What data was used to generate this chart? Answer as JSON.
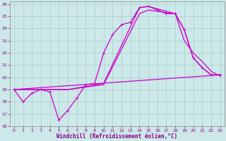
{
  "xlabel": "Windchill (Refroidissement éolien,°C)",
  "background_color": "#cce8e8",
  "grid_color": "#aacccc",
  "line_color": "#cc00cc",
  "xlim": [
    -0.5,
    23.5
  ],
  "ylim": [
    16,
    26.2
  ],
  "yticks": [
    16,
    17,
    18,
    19,
    20,
    21,
    22,
    23,
    24,
    25,
    26
  ],
  "xticks": [
    0,
    1,
    2,
    3,
    4,
    5,
    6,
    7,
    8,
    9,
    10,
    11,
    12,
    13,
    14,
    15,
    16,
    17,
    18,
    19,
    20,
    21,
    22,
    23
  ],
  "lines": [
    {
      "x": [
        0,
        1,
        2,
        3,
        4,
        5,
        6,
        7,
        8,
        9,
        10,
        11,
        12,
        13,
        14,
        15,
        16,
        17,
        18,
        19,
        20,
        21,
        22,
        23
      ],
      "y": [
        19.0,
        18.0,
        18.7,
        19.0,
        18.8,
        16.5,
        17.3,
        18.3,
        19.4,
        19.5,
        22.0,
        23.5,
        24.3,
        24.5,
        25.7,
        25.8,
        25.5,
        25.2,
        25.2,
        23.9,
        21.6,
        20.8,
        20.2,
        20.2
      ],
      "marker": true,
      "lw": 0.9
    },
    {
      "x": [
        0,
        6,
        10,
        14,
        15,
        18,
        19,
        20,
        21,
        22,
        23
      ],
      "y": [
        19.0,
        19.0,
        19.5,
        25.7,
        25.8,
        25.2,
        23.9,
        21.6,
        20.8,
        20.2,
        20.2
      ],
      "marker": false,
      "lw": 0.9
    },
    {
      "x": [
        0,
        6,
        10,
        14,
        15,
        18,
        19,
        20,
        21,
        22,
        23
      ],
      "y": [
        19.0,
        19.0,
        19.4,
        25.2,
        25.5,
        25.2,
        23.0,
        22.0,
        21.3,
        20.5,
        20.1
      ],
      "marker": false,
      "lw": 0.9
    },
    {
      "x": [
        0,
        23
      ],
      "y": [
        19.0,
        20.2
      ],
      "marker": false,
      "lw": 0.9
    }
  ]
}
